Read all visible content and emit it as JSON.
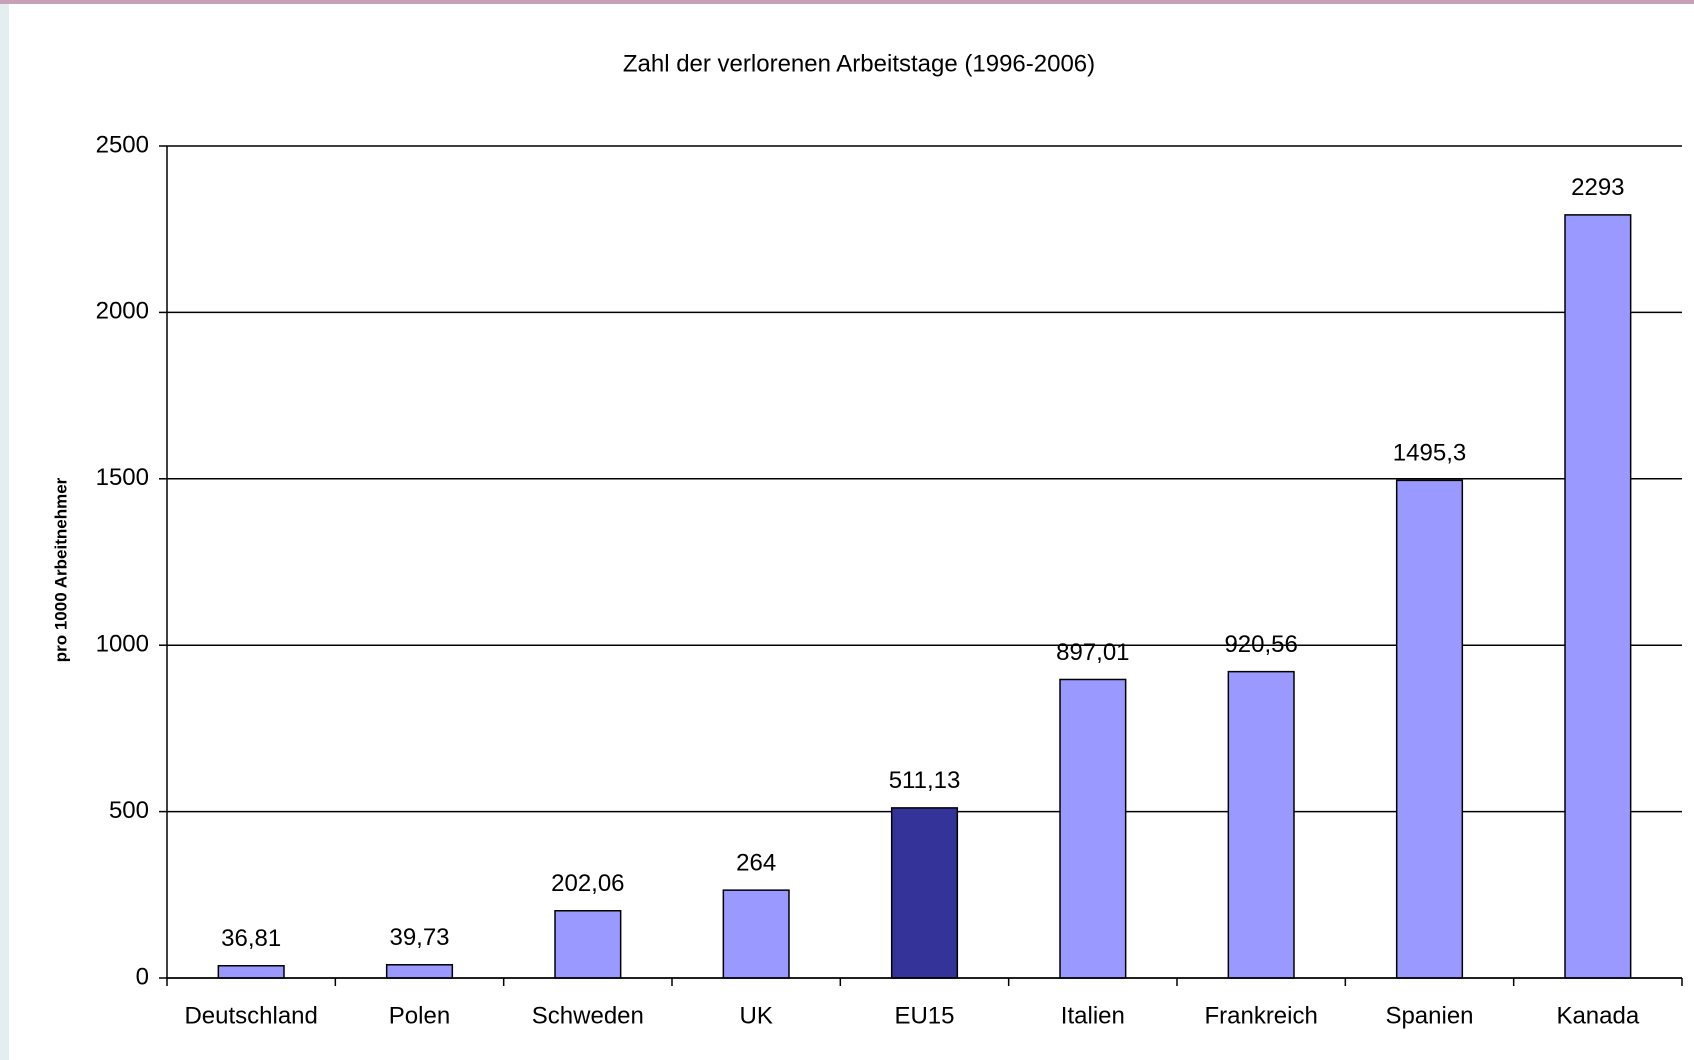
{
  "chart_data": {
    "type": "bar",
    "title": "Zahl der verlorenen Arbeitstage (1996-2006)",
    "y_label": "pro 1000 Arbeitnehmer",
    "categories": [
      "Deutschland",
      "Polen",
      "Schweden",
      "UK",
      "EU15",
      "Italien",
      "Frankreich",
      "Spanien",
      "Kanada"
    ],
    "values": [
      36.81,
      39.73,
      202.06,
      264,
      511.13,
      897.01,
      920.56,
      1495.3,
      2293
    ],
    "value_labels": [
      "36,81",
      "39,73",
      "202,06",
      "264",
      "511,13",
      "897,01",
      "920,56",
      "1495,3",
      "2293"
    ],
    "colors": [
      "#9999ff",
      "#9999ff",
      "#9999ff",
      "#9999ff",
      "#333399",
      "#9999ff",
      "#9999ff",
      "#9999ff",
      "#9999ff"
    ],
    "ylim": [
      0,
      2500
    ],
    "yticks": [
      0,
      500,
      1000,
      1500,
      2000,
      2500
    ],
    "grid": true
  }
}
